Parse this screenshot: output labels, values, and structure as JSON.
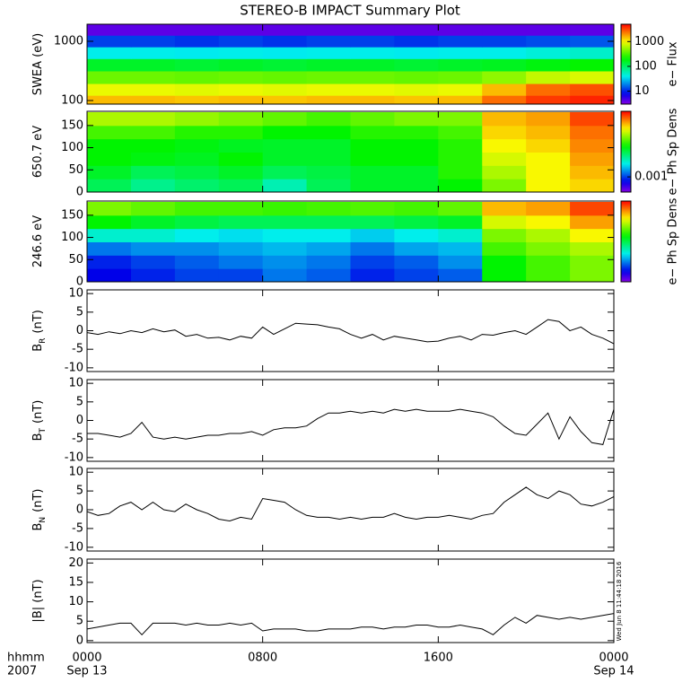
{
  "title": "STEREO-B IMPACT Summary Plot",
  "footer": {
    "time_format": "hhmm",
    "year": "2007",
    "start_date": "Sep 13",
    "end_date": "Sep 14"
  },
  "timestamp": "Wed Jun  8 11:44:18 2016",
  "chart_data": [
    {
      "type": "heatmap",
      "ylabel": "SWEA (eV)",
      "ylog": true,
      "ylim": [
        87,
        1940
      ],
      "yticks": [
        100,
        1000
      ],
      "colormap": "rainbow",
      "x": [
        1,
        3,
        5,
        7,
        9,
        11,
        13,
        15,
        17,
        19,
        21,
        23
      ],
      "y": [
        100,
        150,
        250,
        400,
        650,
        1000,
        1600
      ],
      "values": [
        [
          1500,
          1500,
          1400,
          1500,
          1400,
          1500,
          1500,
          1400,
          1500,
          2500,
          3500,
          4000
        ],
        [
          900,
          900,
          850,
          900,
          850,
          900,
          900,
          850,
          900,
          1500,
          2500,
          3000
        ],
        [
          400,
          400,
          380,
          400,
          380,
          400,
          400,
          380,
          400,
          500,
          700,
          800
        ],
        [
          150,
          150,
          140,
          150,
          140,
          150,
          150,
          140,
          150,
          160,
          180,
          200
        ],
        [
          40,
          40,
          38,
          40,
          38,
          40,
          40,
          38,
          40,
          40,
          45,
          50
        ],
        [
          12,
          12,
          11,
          12,
          11,
          12,
          12,
          11,
          12,
          12,
          13,
          14
        ],
        [
          4,
          4,
          4,
          4,
          4,
          4,
          4,
          4,
          4,
          4,
          4,
          4
        ]
      ],
      "colorbar": {
        "label": "e− Flux",
        "log": true,
        "clim": [
          3,
          5000
        ],
        "ticks": [
          10,
          100,
          1000
        ]
      }
    },
    {
      "type": "heatmap",
      "ylabel": "650.7 eV",
      "ylim": [
        0,
        182
      ],
      "yticks": [
        0,
        50,
        100,
        150
      ],
      "colormap": "rainbow",
      "x": [
        1,
        3,
        5,
        7,
        9,
        11,
        13,
        15,
        17,
        19,
        21,
        23
      ],
      "y": [
        15,
        45,
        75,
        105,
        135,
        165
      ],
      "values": [
        [
          0.003,
          0.0025,
          0.0028,
          0.003,
          0.0022,
          0.003,
          0.0035,
          0.0035,
          0.004,
          0.006,
          0.009,
          0.01
        ],
        [
          0.0035,
          0.003,
          0.0032,
          0.0035,
          0.003,
          0.0032,
          0.0035,
          0.0035,
          0.0045,
          0.007,
          0.009,
          0.011
        ],
        [
          0.004,
          0.0038,
          0.0036,
          0.004,
          0.0035,
          0.0035,
          0.004,
          0.004,
          0.0045,
          0.008,
          0.009,
          0.012
        ],
        [
          0.004,
          0.004,
          0.0038,
          0.0036,
          0.0035,
          0.0035,
          0.004,
          0.004,
          0.0045,
          0.009,
          0.01,
          0.013
        ],
        [
          0.005,
          0.005,
          0.0045,
          0.0045,
          0.004,
          0.004,
          0.0045,
          0.0045,
          0.005,
          0.01,
          0.011,
          0.014
        ],
        [
          0.007,
          0.007,
          0.0065,
          0.006,
          0.0055,
          0.005,
          0.0055,
          0.006,
          0.006,
          0.011,
          0.012,
          0.016
        ]
      ],
      "colorbar": {
        "label": "e− Ph Sp Dens",
        "log": true,
        "clim": [
          0.0005,
          0.02
        ],
        "ticks": [
          0.001
        ]
      }
    },
    {
      "type": "heatmap",
      "ylabel": "246.6 eV",
      "ylim": [
        0,
        182
      ],
      "yticks": [
        0,
        50,
        100,
        150
      ],
      "colormap": "rainbow",
      "x": [
        1,
        3,
        5,
        7,
        9,
        11,
        13,
        15,
        17,
        19,
        21,
        23
      ],
      "y": [
        15,
        45,
        75,
        105,
        135,
        165
      ],
      "values": [
        [
          0.0008,
          0.0009,
          0.001,
          0.001,
          0.0012,
          0.0011,
          0.0009,
          0.001,
          0.0011,
          0.004,
          0.005,
          0.006
        ],
        [
          0.0009,
          0.001,
          0.0011,
          0.0012,
          0.0013,
          0.0012,
          0.001,
          0.0011,
          0.0013,
          0.004,
          0.005,
          0.006
        ],
        [
          0.0012,
          0.0013,
          0.0013,
          0.0014,
          0.0015,
          0.0014,
          0.0012,
          0.0014,
          0.0015,
          0.005,
          0.006,
          0.007
        ],
        [
          0.002,
          0.002,
          0.0018,
          0.0017,
          0.0018,
          0.0018,
          0.0016,
          0.0018,
          0.002,
          0.006,
          0.007,
          0.009
        ],
        [
          0.004,
          0.0035,
          0.0032,
          0.003,
          0.003,
          0.003,
          0.003,
          0.0032,
          0.0035,
          0.008,
          0.009,
          0.012
        ],
        [
          0.006,
          0.0055,
          0.005,
          0.005,
          0.0048,
          0.005,
          0.0052,
          0.005,
          0.0055,
          0.011,
          0.012,
          0.016
        ]
      ],
      "colorbar": {
        "label": "e− Ph Sp Dens",
        "log": true,
        "clim": [
          0.0005,
          0.02
        ]
      }
    },
    {
      "type": "line",
      "ylabel": "B",
      "ylabel_sub": "R",
      "ylabel_unit": "(nT)",
      "color": "#000000",
      "ylim": [
        -11,
        11
      ],
      "yticks": [
        -10,
        -5,
        0,
        5,
        10
      ],
      "x": [
        0,
        0.5,
        1,
        1.5,
        2,
        2.5,
        3,
        3.5,
        4,
        4.5,
        5,
        5.5,
        6,
        6.5,
        7,
        7.5,
        8,
        8.5,
        9,
        9.5,
        10,
        10.5,
        11,
        11.5,
        12,
        12.5,
        13,
        13.5,
        14,
        14.5,
        15,
        15.5,
        16,
        16.5,
        17,
        17.5,
        18,
        18.5,
        19,
        19.5,
        20,
        20.5,
        21,
        21.5,
        22,
        22.5,
        23,
        23.5,
        24
      ],
      "values": [
        -0.5,
        -1,
        -0.3,
        -0.8,
        0,
        -0.5,
        0.5,
        -0.3,
        0.2,
        -1.5,
        -1,
        -2,
        -1.8,
        -2.5,
        -1.5,
        -2,
        1,
        -1,
        0.5,
        2,
        1.8,
        1.6,
        1,
        0.5,
        -1,
        -2,
        -1,
        -2.5,
        -1.5,
        -2,
        -2.5,
        -3,
        -2.8,
        -2,
        -1.5,
        -2.5,
        -1,
        -1.2,
        -0.5,
        0,
        -1,
        1,
        3,
        2.5,
        0,
        1,
        -1,
        -2,
        -3.5
      ]
    },
    {
      "type": "line",
      "ylabel": "B",
      "ylabel_sub": "T",
      "ylabel_unit": "(nT)",
      "color": "#000000",
      "ylim": [
        -11,
        11
      ],
      "yticks": [
        -10,
        -5,
        0,
        5,
        10
      ],
      "x": [
        0,
        0.5,
        1,
        1.5,
        2,
        2.5,
        3,
        3.5,
        4,
        4.5,
        5,
        5.5,
        6,
        6.5,
        7,
        7.5,
        8,
        8.5,
        9,
        9.5,
        10,
        10.5,
        11,
        11.5,
        12,
        12.5,
        13,
        13.5,
        14,
        14.5,
        15,
        15.5,
        16,
        16.5,
        17,
        17.5,
        18,
        18.5,
        19,
        19.5,
        20,
        20.5,
        21,
        21.5,
        22,
        22.5,
        23,
        23.5,
        24
      ],
      "values": [
        -3.5,
        -3.5,
        -4,
        -4.5,
        -3.5,
        -0.5,
        -4.5,
        -5,
        -4.5,
        -5,
        -4.5,
        -4,
        -4,
        -3.5,
        -3.5,
        -3,
        -4,
        -2.5,
        -2,
        -2,
        -1.5,
        0.5,
        2,
        2,
        2.5,
        2,
        2.5,
        2,
        3,
        2.5,
        3,
        2.5,
        2.5,
        2.5,
        3,
        2.5,
        2,
        1,
        -1.5,
        -3.5,
        -4,
        -1,
        2,
        -5,
        1,
        -3,
        -6,
        -6.5,
        3
      ]
    },
    {
      "type": "line",
      "ylabel": "B",
      "ylabel_sub": "N",
      "ylabel_unit": "(nT)",
      "color": "#000000",
      "ylim": [
        -11,
        11
      ],
      "yticks": [
        -10,
        -5,
        0,
        5,
        10
      ],
      "x": [
        0,
        0.5,
        1,
        1.5,
        2,
        2.5,
        3,
        3.5,
        4,
        4.5,
        5,
        5.5,
        6,
        6.5,
        7,
        7.5,
        8,
        8.5,
        9,
        9.5,
        10,
        10.5,
        11,
        11.5,
        12,
        12.5,
        13,
        13.5,
        14,
        14.5,
        15,
        15.5,
        16,
        16.5,
        17,
        17.5,
        18,
        18.5,
        19,
        19.5,
        20,
        20.5,
        21,
        21.5,
        22,
        22.5,
        23,
        23.5,
        24
      ],
      "values": [
        -0.5,
        -1.5,
        -1,
        1,
        2,
        0,
        2,
        0,
        -0.5,
        1.5,
        0,
        -1,
        -2.5,
        -3,
        -2,
        -2.5,
        3,
        2.5,
        2,
        0,
        -1.5,
        -2,
        -2,
        -2.5,
        -2,
        -2.5,
        -2,
        -2,
        -1,
        -2,
        -2.5,
        -2,
        -2,
        -1.5,
        -2,
        -2.5,
        -1.5,
        -1,
        2,
        4,
        6,
        4,
        3,
        5,
        4,
        1.5,
        1,
        2,
        3.5
      ]
    },
    {
      "type": "line",
      "ylabel": "|B| (nT)",
      "color": "#000000",
      "ylim": [
        -0.5,
        21
      ],
      "yticks": [
        0,
        5,
        10,
        15,
        20
      ],
      "xlim": [
        0,
        24
      ],
      "xticks": [
        {
          "value": 0,
          "label": "0000"
        },
        {
          "value": 8,
          "label": "0800"
        },
        {
          "value": 16,
          "label": "1600"
        },
        {
          "value": 24,
          "label": "0000"
        }
      ],
      "x": [
        0,
        0.5,
        1,
        1.5,
        2,
        2.5,
        3,
        3.5,
        4,
        4.5,
        5,
        5.5,
        6,
        6.5,
        7,
        7.5,
        8,
        8.5,
        9,
        9.5,
        10,
        10.5,
        11,
        11.5,
        12,
        12.5,
        13,
        13.5,
        14,
        14.5,
        15,
        15.5,
        16,
        16.5,
        17,
        17.5,
        18,
        18.5,
        19,
        19.5,
        20,
        20.5,
        21,
        21.5,
        22,
        22.5,
        23,
        23.5,
        24
      ],
      "values": [
        3,
        3.5,
        4,
        4.5,
        4.5,
        1.5,
        4.5,
        4.5,
        4.5,
        4,
        4.5,
        4,
        4,
        4.5,
        4,
        4.5,
        2.5,
        3,
        3,
        3,
        2.5,
        2.5,
        3,
        3,
        3,
        3.5,
        3.5,
        3,
        3.5,
        3.5,
        4,
        4,
        3.5,
        3.5,
        4,
        3.5,
        3,
        1.5,
        4,
        6,
        4.5,
        6.5,
        6,
        5.5,
        6,
        5.5,
        6,
        6.5,
        7
      ]
    }
  ]
}
